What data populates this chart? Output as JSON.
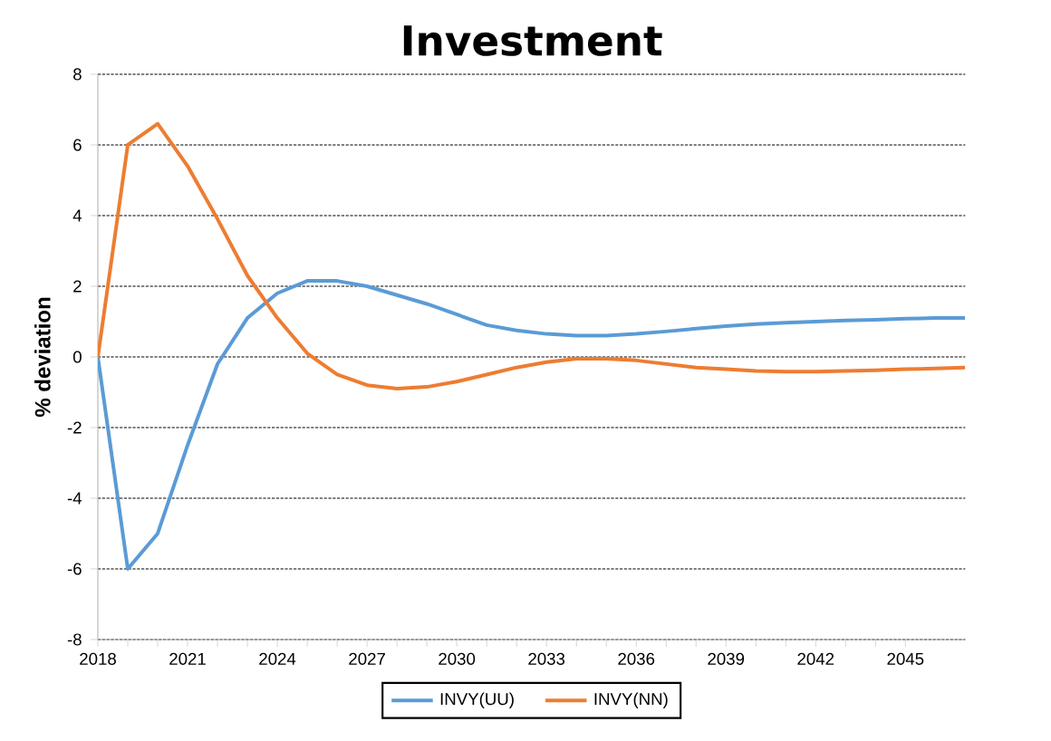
{
  "chart_data": {
    "type": "line",
    "title": "Investment",
    "ylabel": "% deviation",
    "x": [
      2018,
      2019,
      2020,
      2021,
      2022,
      2023,
      2024,
      2025,
      2026,
      2027,
      2028,
      2029,
      2030,
      2031,
      2032,
      2033,
      2034,
      2035,
      2036,
      2037,
      2038,
      2039,
      2040,
      2041,
      2042,
      2043,
      2044,
      2045,
      2046,
      2047
    ],
    "series": [
      {
        "name": "INVY(UU)",
        "color": "#5b9bd5",
        "values": [
          0,
          -6,
          -5,
          -2.5,
          -0.2,
          1.1,
          1.8,
          2.15,
          2.15,
          2.0,
          1.75,
          1.5,
          1.2,
          0.9,
          0.75,
          0.65,
          0.6,
          0.6,
          0.65,
          0.72,
          0.8,
          0.87,
          0.93,
          0.97,
          1.0,
          1.03,
          1.05,
          1.08,
          1.1,
          1.1
        ]
      },
      {
        "name": "INVY(NN)",
        "color": "#ed7d31",
        "values": [
          0,
          6,
          6.6,
          5.4,
          3.9,
          2.3,
          1.1,
          0.1,
          -0.5,
          -0.8,
          -0.9,
          -0.85,
          -0.7,
          -0.5,
          -0.3,
          -0.15,
          -0.05,
          -0.05,
          -0.1,
          -0.2,
          -0.3,
          -0.35,
          -0.4,
          -0.42,
          -0.42,
          -0.4,
          -0.38,
          -0.35,
          -0.33,
          -0.3
        ]
      }
    ],
    "xlim": [
      2018,
      2047
    ],
    "xticks": [
      2018,
      2021,
      2024,
      2027,
      2030,
      2033,
      2036,
      2039,
      2042,
      2045
    ],
    "ylim": [
      -8,
      8
    ],
    "yticks": [
      -8,
      -6,
      -4,
      -2,
      0,
      2,
      4,
      6,
      8
    ],
    "grid": "y",
    "legend": "bottom",
    "marker": "none",
    "line_style": "solid"
  }
}
